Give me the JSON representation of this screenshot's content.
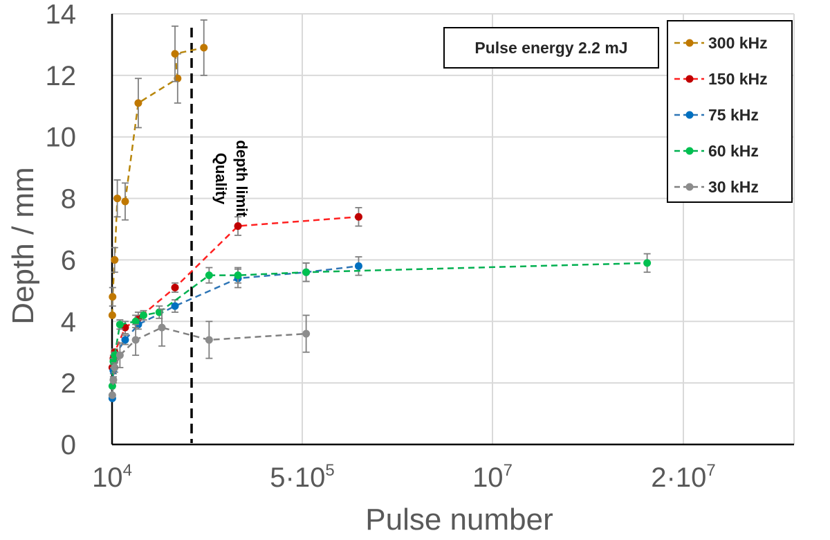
{
  "chart_data": {
    "type": "scatter",
    "xlabel": "Pulse number",
    "ylabel": "Depth / mm",
    "x_ticks": [
      {
        "base": "10",
        "exp": "4"
      },
      {
        "base": "5·10",
        "exp": "5"
      },
      {
        "base": "10",
        "exp": "7"
      },
      {
        "base": "2·10",
        "exp": "7"
      }
    ],
    "y_ticks": [
      "0",
      "2",
      "4",
      "6",
      "8",
      "10",
      "12",
      "14"
    ],
    "ylim": [
      0,
      14
    ],
    "grid": true,
    "legend_position": "top-right",
    "annotation_box": "Pulse energy 2.2 mJ",
    "limit_label_line1": "Quality",
    "limit_label_line2": "depth limit",
    "series": [
      {
        "name": "300 kHz",
        "color": "#b8860b",
        "marker": "#c07800",
        "points": [
          [
            10000,
            4.2
          ],
          [
            20000,
            4.8
          ],
          [
            100000,
            6.0
          ],
          [
            200000,
            8.0
          ],
          [
            500000,
            7.9
          ],
          [
            1000000,
            11.1
          ],
          [
            2500000,
            11.9
          ],
          [
            2400000,
            12.7
          ],
          [
            3500000,
            12.9
          ]
        ],
        "errors": [
          0,
          0.3,
          0.4,
          0.6,
          0.6,
          0.8,
          0.8,
          0.9,
          0.9
        ]
      },
      {
        "name": "150 kHz",
        "color": "#ff2020",
        "marker": "#c00000",
        "points": [
          [
            10000,
            2.5
          ],
          [
            50000,
            2.8
          ],
          [
            100000,
            3.0
          ],
          [
            500000,
            3.8
          ],
          [
            1000000,
            4.1
          ],
          [
            2400000,
            5.1
          ],
          [
            4800000,
            7.1
          ],
          [
            9400000,
            7.4
          ]
        ],
        "errors": [
          0,
          0.1,
          0.1,
          0.2,
          0.2,
          0.15,
          0.3,
          0.3
        ]
      },
      {
        "name": "75 kHz",
        "color": "#2e75b6",
        "marker": "#0070c0",
        "points": [
          [
            10000,
            1.5
          ],
          [
            50000,
            2.4
          ],
          [
            100000,
            2.9
          ],
          [
            500000,
            3.4
          ],
          [
            1000000,
            3.9
          ],
          [
            2400000,
            4.5
          ],
          [
            4800000,
            5.4
          ],
          [
            7400000,
            5.6
          ],
          [
            9400000,
            5.8
          ]
        ],
        "errors": [
          0,
          0.1,
          0.1,
          0.15,
          0.15,
          0.2,
          0.3,
          0.3,
          0.3
        ]
      },
      {
        "name": "60 kHz",
        "color": "#00b050",
        "marker": "#00c050",
        "points": [
          [
            10000,
            1.9
          ],
          [
            50000,
            2.7
          ],
          [
            100000,
            2.9
          ],
          [
            300000,
            3.9
          ],
          [
            900000,
            4.0
          ],
          [
            1200000,
            4.2
          ],
          [
            1800000,
            4.3
          ],
          [
            3700000,
            5.5
          ],
          [
            4800000,
            5.5
          ],
          [
            7400000,
            5.6
          ],
          [
            20400000,
            5.9
          ]
        ],
        "errors": [
          0,
          0.1,
          0.1,
          0.15,
          0.2,
          0.15,
          0.2,
          0.25,
          0.25,
          0.3,
          0.3
        ]
      },
      {
        "name": "30 kHz",
        "color": "#808080",
        "marker": "#8c8c8c",
        "points": [
          [
            10000,
            1.6
          ],
          [
            50000,
            2.1
          ],
          [
            100000,
            2.5
          ],
          [
            300000,
            2.9
          ],
          [
            900000,
            3.4
          ],
          [
            1900000,
            3.8
          ],
          [
            3700000,
            3.4
          ],
          [
            7400000,
            3.6
          ]
        ],
        "errors": [
          0,
          0.1,
          0.15,
          0.4,
          0.5,
          0.6,
          0.6,
          0.6
        ]
      }
    ]
  }
}
